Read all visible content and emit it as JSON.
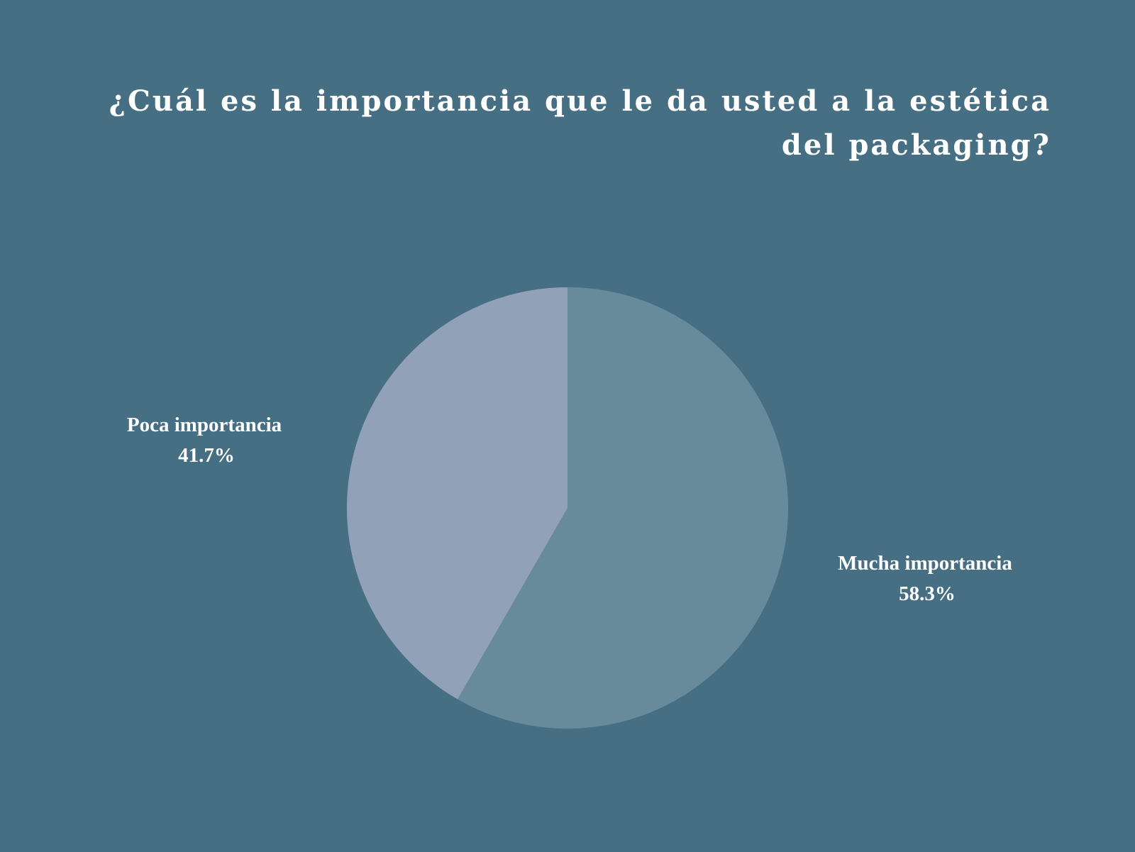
{
  "colors": {
    "background": "#476f84",
    "text": "#ffffff"
  },
  "chart_data": {
    "type": "pie",
    "title": "¿Cuál es la importancia que le da usted a la estética del packaging?",
    "slices": [
      {
        "label": "Mucha importancia",
        "value": 58.3,
        "value_label": "58.3%",
        "color": "#688b9b"
      },
      {
        "label": "Poca importancia",
        "value": 41.7,
        "value_label": "41.7%",
        "color": "#91a2b8"
      }
    ]
  }
}
